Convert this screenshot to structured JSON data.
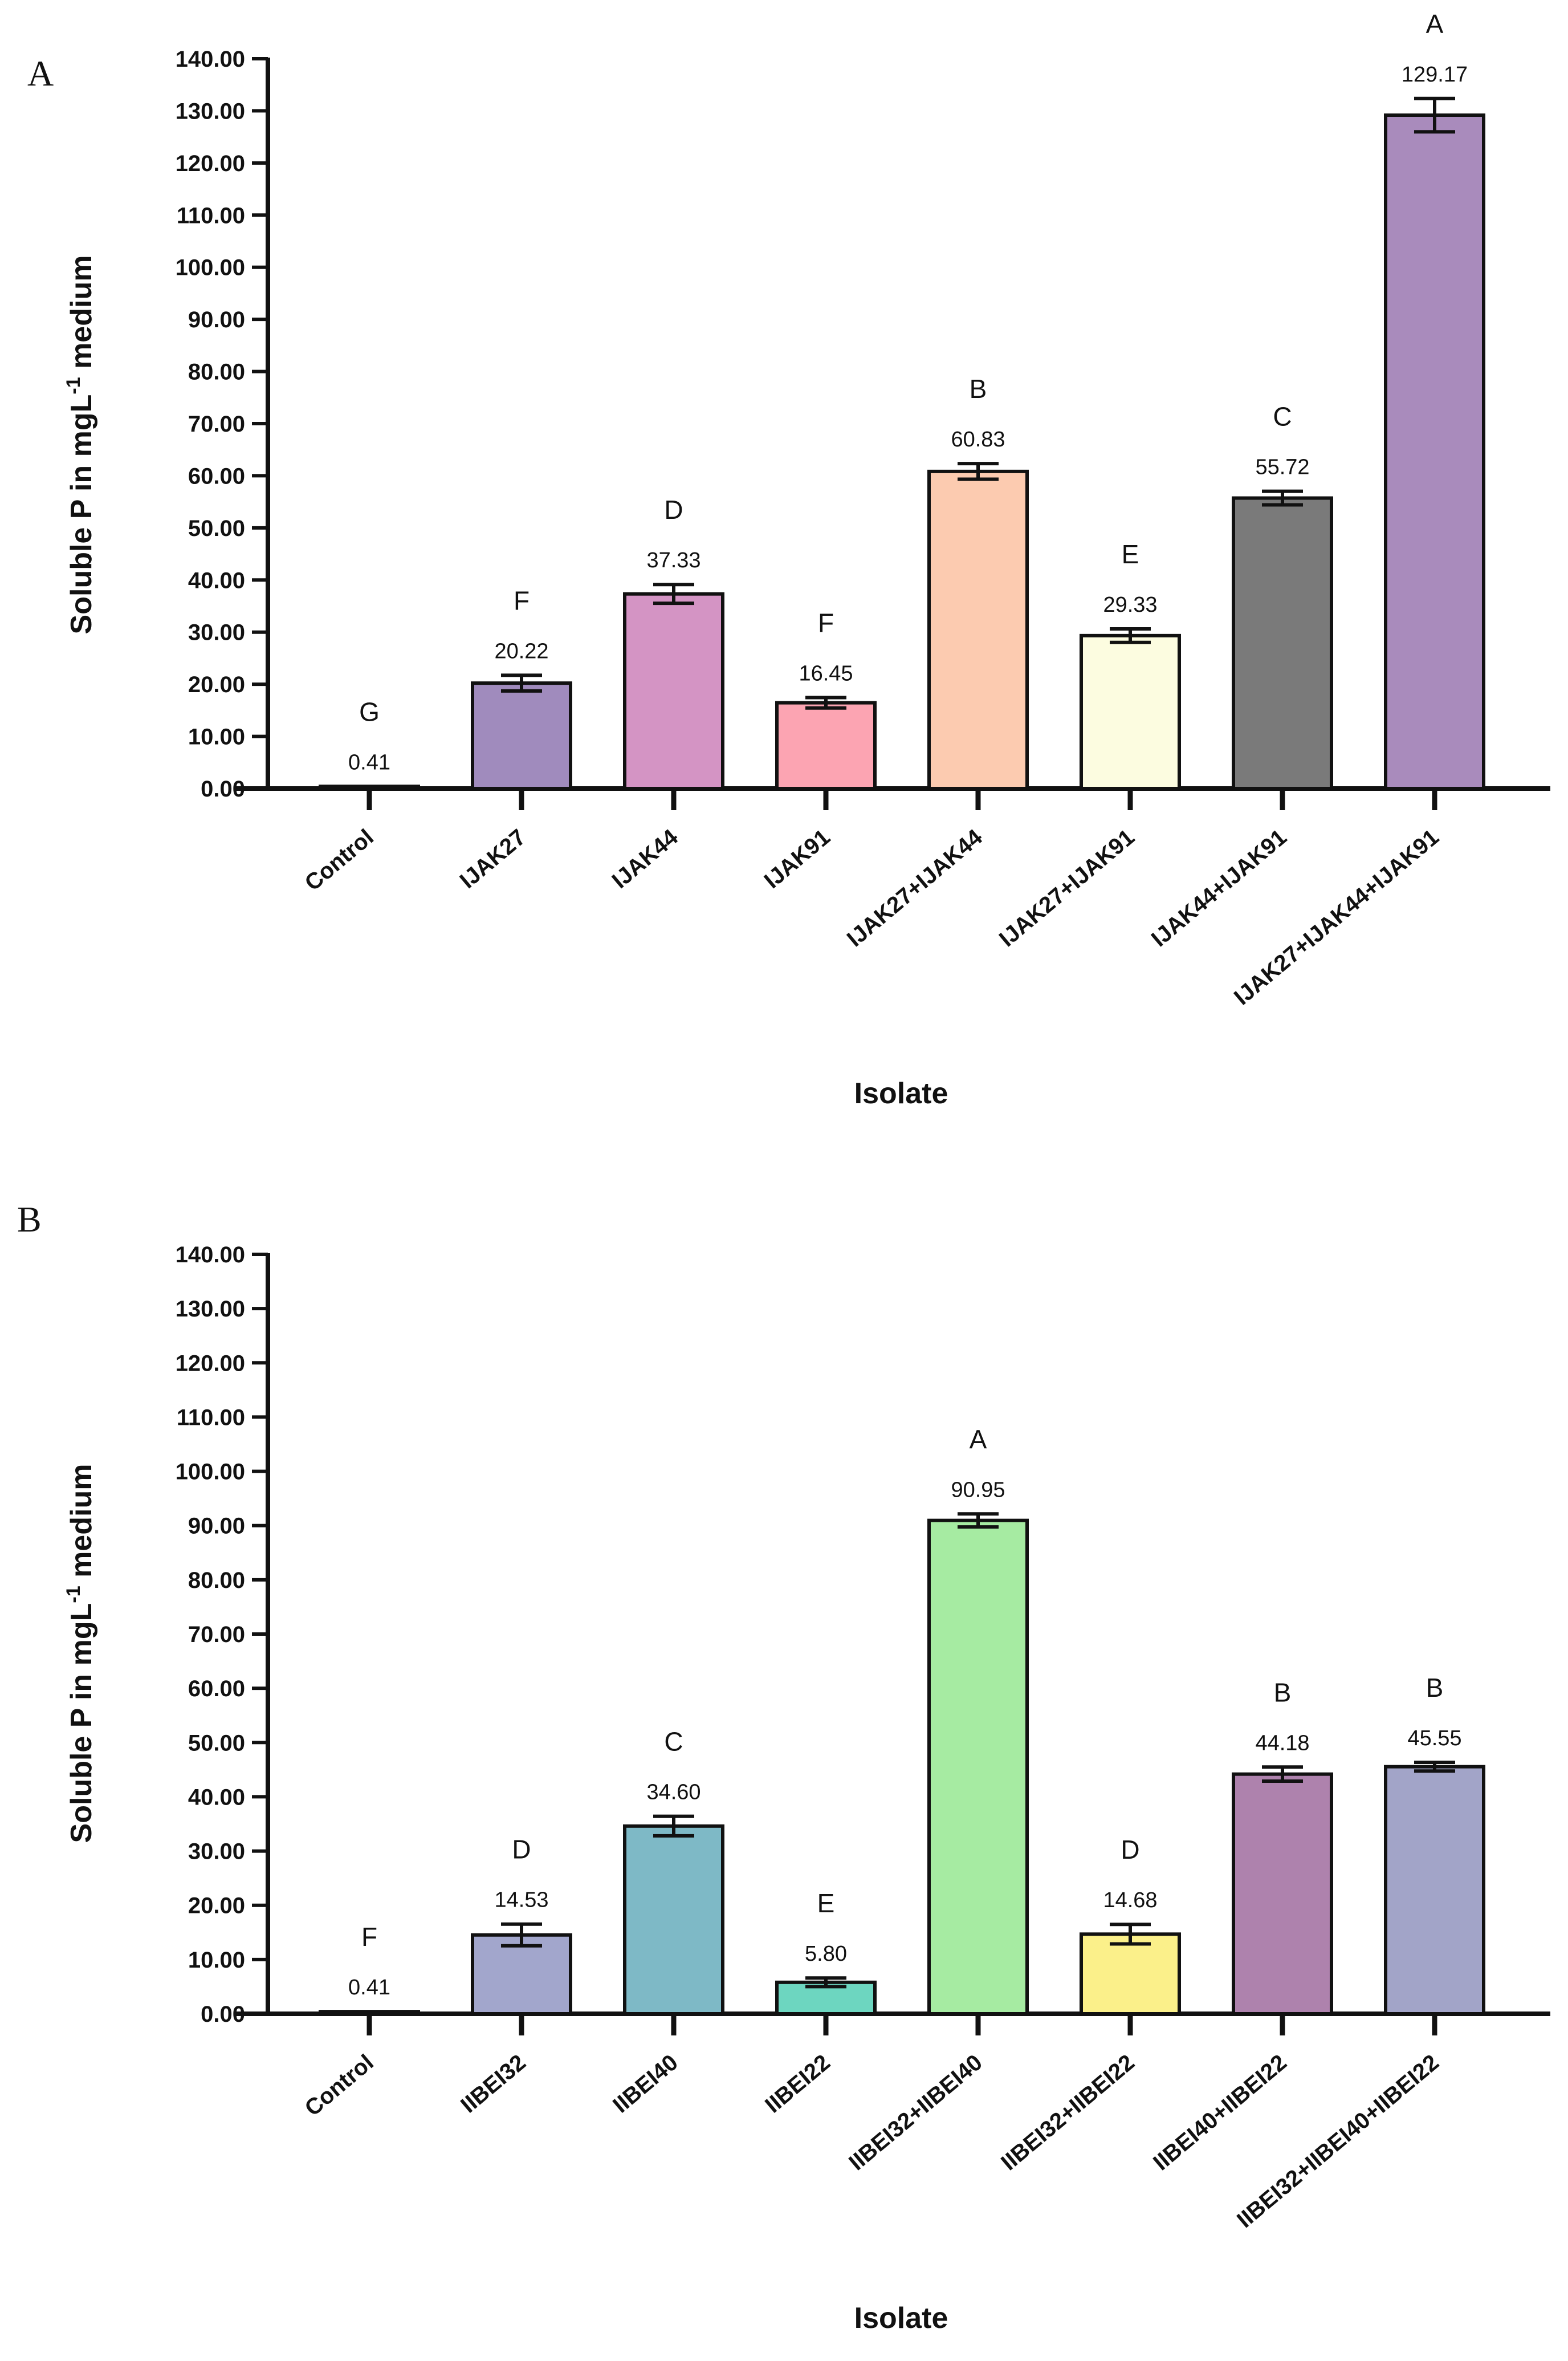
{
  "chart_data": [
    {
      "type": "bar",
      "panel": "A",
      "title": "",
      "xlabel": "Isolate",
      "ylabel_parts": {
        "main": "Soluble P in mgL",
        "sup": "-1",
        "tail": " medium"
      },
      "ylim": [
        0,
        140
      ],
      "yticks": [
        "0.00",
        "10.00",
        "20.00",
        "30.00",
        "40.00",
        "50.00",
        "60.00",
        "70.00",
        "80.00",
        "90.00",
        "100.00",
        "110.00",
        "120.00",
        "130.00",
        "140.00"
      ],
      "categories": [
        "Control",
        "IJAK27",
        "IJAK44",
        "IJAK91",
        "IJAK27+IJAK44",
        "IJAK27+IJAK91",
        "IJAK44+IJAK91",
        "IJAK27+IJAK44+IJAK91"
      ],
      "values": [
        0.41,
        20.22,
        37.33,
        16.45,
        60.83,
        29.33,
        55.72,
        129.17
      ],
      "value_labels": [
        "0.41",
        "20.22",
        "37.33",
        "16.45",
        "60.83",
        "29.33",
        "55.72",
        "129.17"
      ],
      "errors": [
        0,
        1.5,
        1.8,
        1.0,
        1.5,
        1.3,
        1.3,
        3.2
      ],
      "significance": [
        "G",
        "F",
        "D",
        "F",
        "B",
        "E",
        "C",
        "A"
      ],
      "colors": [
        "#ffffff",
        "#a08bbd",
        "#d494c4",
        "#fca4b2",
        "#fccbb0",
        "#fcfce0",
        "#7a7a7a",
        "#a98bbc"
      ]
    },
    {
      "type": "bar",
      "panel": "B",
      "title": "",
      "xlabel": "Isolate",
      "ylabel_parts": {
        "main": "Soluble P in mgL",
        "sup": "-1",
        "tail": " medium"
      },
      "ylim": [
        0,
        140
      ],
      "yticks": [
        "0.00",
        "10.00",
        "20.00",
        "30.00",
        "40.00",
        "50.00",
        "60.00",
        "70.00",
        "80.00",
        "90.00",
        "100.00",
        "110.00",
        "120.00",
        "130.00",
        "140.00"
      ],
      "categories": [
        "Control",
        "IIBEI32",
        "IIBEI40",
        "IIBEI22",
        "IIBEI32+IIBEI40",
        "IIBEI32+IIBEI22",
        "IIBEI40+IIBEI22",
        "IIBEI32+IIBEI40+IIBEI22"
      ],
      "values": [
        0.41,
        14.53,
        34.6,
        5.8,
        90.95,
        14.68,
        44.18,
        45.55
      ],
      "value_labels": [
        "0.41",
        "14.53",
        "34.60",
        "5.80",
        "90.95",
        "14.68",
        "44.18",
        "45.55"
      ],
      "errors": [
        0,
        2.0,
        1.8,
        0.8,
        1.2,
        1.8,
        1.3,
        0.8
      ],
      "significance": [
        "F",
        "D",
        "C",
        "E",
        "A",
        "D",
        "B",
        "B"
      ],
      "colors": [
        "#ffffff",
        "#a2a6cc",
        "#7eb9c6",
        "#6dd6c0",
        "#a6eba2",
        "#fbf08a",
        "#ae82ad",
        "#a2a4c8"
      ]
    }
  ]
}
